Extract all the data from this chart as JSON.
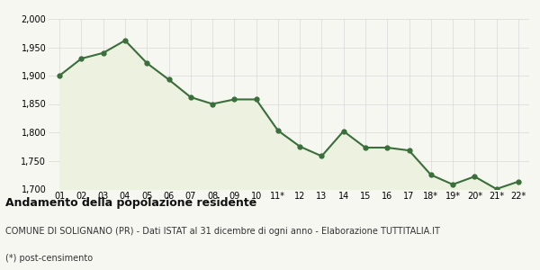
{
  "x_labels": [
    "01",
    "02",
    "03",
    "04",
    "05",
    "06",
    "07",
    "08",
    "09",
    "10",
    "11*",
    "12",
    "13",
    "14",
    "15",
    "16",
    "17",
    "18*",
    "19*",
    "20*",
    "21*",
    "22*"
  ],
  "y_values": [
    1900,
    1930,
    1940,
    1962,
    1922,
    1893,
    1862,
    1850,
    1858,
    1858,
    1803,
    1775,
    1758,
    1802,
    1773,
    1773,
    1768,
    1725,
    1708,
    1722,
    1700,
    1713
  ],
  "line_color": "#3a6e3a",
  "fill_color": "#edf2e0",
  "marker_color": "#3a6e3a",
  "background_color": "#f7f7f2",
  "grid_color": "#d8d8d8",
  "ylim": [
    1700,
    2000
  ],
  "yticks": [
    1700,
    1750,
    1800,
    1850,
    1900,
    1950,
    2000
  ],
  "title": "Andamento della popolazione residente",
  "subtitle": "COMUNE DI SOLIGNANO (PR) - Dati ISTAT al 31 dicembre di ogni anno - Elaborazione TUTTITALIA.IT",
  "footnote": "(*) post-censimento",
  "title_fontsize": 9,
  "subtitle_fontsize": 7,
  "footnote_fontsize": 7,
  "tick_fontsize": 7,
  "line_width": 1.5,
  "marker_size": 3.5
}
